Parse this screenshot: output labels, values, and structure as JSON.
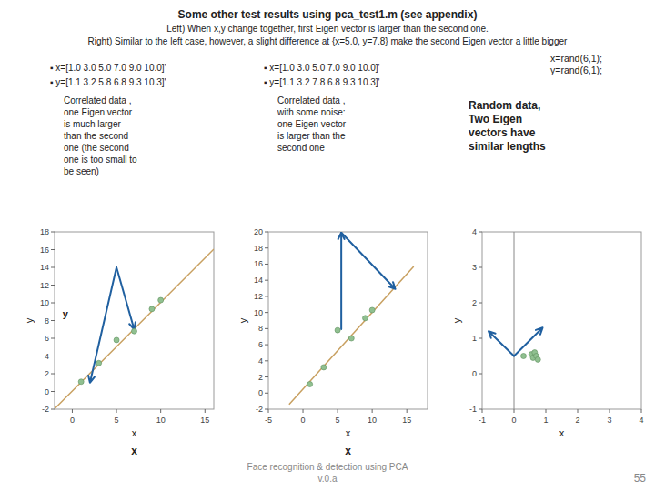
{
  "title": "Some other test results using pca_test1.m (see appendix)",
  "subtitle": [
    "Left) When x,y change together, first Eigen vector is larger than the second one.",
    "Right) Similar to the left case, however, a slight difference at {x=5.0, y=7.8} make the second Eigen vector a little bigger"
  ],
  "footer": "Face recognition & detection using PCA\nv.0.a",
  "page_number": "55",
  "chart_data": [
    {
      "type": "scatter",
      "x": [
        1.0,
        3.0,
        5.0,
        7.0,
        9.0,
        10.0
      ],
      "values": [
        1.1,
        3.2,
        5.8,
        6.8,
        9.3,
        10.3
      ],
      "color": "#90c090",
      "xlabel": "x",
      "ylabel": "y",
      "xlim": [
        -2,
        16
      ],
      "ylim": [
        -2,
        18
      ],
      "xticks": [
        0,
        5,
        10,
        15
      ],
      "yticks": [
        -2,
        0,
        2,
        4,
        6,
        8,
        10,
        12,
        14,
        16,
        18
      ],
      "grid": false,
      "bullets": [
        "▪  x=[1.0 3.0 5.0 7.0 9.0 10.0]'",
        "▪  y=[1.1 3.2 5.8 6.8 9.3 10.3]'"
      ],
      "annotation": "Correlated data ,\none Eigen vector\nis much larger\nthan the second\none (the second\none is too small to\nbe seen)",
      "inner_label": "y",
      "below_label": "x",
      "fit_line": {
        "x": [
          -2,
          16
        ],
        "y": [
          -1.95,
          16.05
        ],
        "color": "#c8a060"
      },
      "arrow_color": "#2060a0",
      "arrows": [
        {
          "x1": 5.0,
          "y1": 14.0,
          "x2": 2.0,
          "y2": 1.0
        },
        {
          "x1": 5.0,
          "y1": 14.0,
          "x2": 7.0,
          "y2": 7.0
        }
      ]
    },
    {
      "type": "scatter",
      "x": [
        1.0,
        3.0,
        5.0,
        7.0,
        9.0,
        10.0
      ],
      "values": [
        1.1,
        3.2,
        7.8,
        6.8,
        9.3,
        10.3
      ],
      "color": "#90c090",
      "xlabel": "x",
      "ylabel": "y",
      "xlim": [
        -5,
        18
      ],
      "ylim": [
        -2,
        20
      ],
      "xticks": [
        -5,
        0,
        5,
        10,
        15
      ],
      "yticks": [
        -2,
        0,
        2,
        4,
        6,
        8,
        10,
        12,
        14,
        16,
        18,
        20
      ],
      "grid": false,
      "bullets": [
        "▪  x=[1.0 3.0 5.0 7.0 9.0 10.0]'",
        "▪  y=[1.1 3.2 7.8 6.8 9.3 10.3]'"
      ],
      "annotation": "Correlated data ,\nwith some noise:\none Eigen vector\nis larger than the\nsecond one",
      "below_label": "x",
      "fit_line": {
        "x": [
          -2,
          16
        ],
        "y": [
          -1.4,
          15.7
        ],
        "color": "#c8a060"
      },
      "arrow_color": "#2060a0",
      "arrows": [
        {
          "x1": 5.5333,
          "y1": 7.9167,
          "x2": 5.5333,
          "y2": 19.9167
        },
        {
          "x1": 5.5333,
          "y1": 19.9167,
          "x2": 13.3333,
          "y2": 12.9167
        }
      ]
    },
    {
      "type": "scatter",
      "x": [
        0.3,
        0.55,
        0.6,
        0.65,
        0.7,
        0.75
      ],
      "values": [
        0.5,
        0.55,
        0.45,
        0.6,
        0.5,
        0.4
      ],
      "color": "#90c090",
      "xlabel": "x",
      "ylabel": "y",
      "xlim": [
        -1,
        4
      ],
      "ylim": [
        -1,
        4
      ],
      "xticks": [
        -1,
        0,
        1,
        2,
        3,
        4
      ],
      "yticks": [
        -1,
        0,
        1,
        2,
        3,
        4
      ],
      "grid": false,
      "label": "x=rand(6,1);\ny=rand(6,1);",
      "annotation": "Random data,\nTwo Eigen\nvectors have\nsimilar lengths",
      "vline": 0,
      "arrow_color": "#2060a0",
      "arrows": [
        {
          "x1": 0.0,
          "y1": 0.5,
          "x2": -0.8,
          "y2": 1.2
        },
        {
          "x1": 0.0,
          "y1": 0.5,
          "x2": 0.9,
          "y2": 1.3
        }
      ]
    }
  ]
}
